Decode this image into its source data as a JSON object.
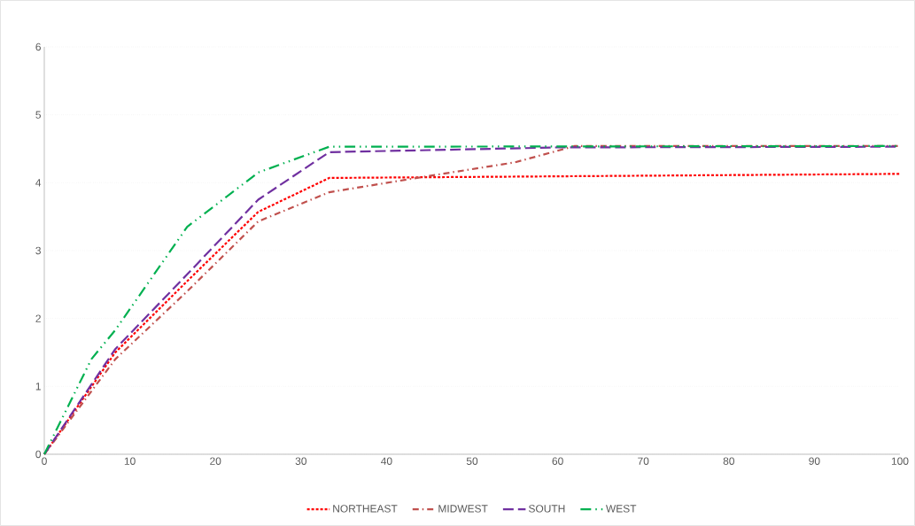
{
  "chart_data": {
    "type": "line",
    "xlim": [
      0,
      100
    ],
    "ylim": [
      0,
      6
    ],
    "xticks": [
      0,
      10,
      20,
      30,
      40,
      50,
      60,
      70,
      80,
      90,
      100
    ],
    "yticks": [
      0,
      1,
      2,
      3,
      4,
      5,
      6
    ],
    "grid": "y",
    "legend": "bottom",
    "marker": "none",
    "series": [
      {
        "name": "NORTHEAST",
        "color": "#ff0000",
        "line_style": "dashed",
        "x": [
          0,
          8.3,
          16.7,
          25,
          33.3,
          100
        ],
        "values": [
          0,
          1.5,
          2.55,
          3.57,
          4.07,
          4.13
        ]
      },
      {
        "name": "MIDWEST",
        "color": "#c0504d",
        "line_style": "dashed",
        "x": [
          0,
          8.3,
          16.7,
          25,
          33.3,
          45,
          55,
          62,
          100
        ],
        "values": [
          0,
          1.4,
          2.4,
          3.43,
          3.86,
          4.1,
          4.3,
          4.54,
          4.54
        ]
      },
      {
        "name": "SOUTH",
        "color": "#7030a0",
        "line_style": "dashed",
        "x": [
          0,
          8.3,
          16.7,
          25,
          33.3,
          45,
          60,
          100
        ],
        "values": [
          0,
          1.55,
          2.65,
          3.75,
          4.45,
          4.48,
          4.52,
          4.53
        ]
      },
      {
        "name": "WEST",
        "color": "#00b050",
        "line_style": "dashed",
        "x": [
          0,
          5.5,
          8.3,
          16.7,
          25,
          33.3,
          100
        ],
        "values": [
          0,
          1.4,
          1.83,
          3.35,
          4.15,
          4.53,
          4.54
        ]
      }
    ]
  }
}
